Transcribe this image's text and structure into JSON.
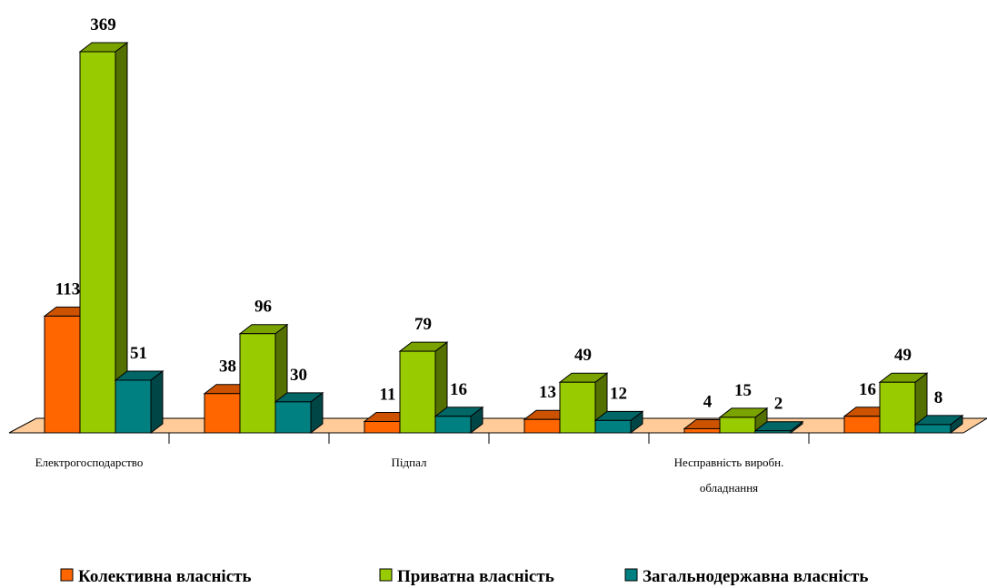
{
  "chart_data": {
    "type": "bar3d",
    "categories": [
      "Електрогосподарство",
      null,
      "Підпал",
      null,
      "Несправність виробн. обладнання",
      null
    ],
    "series": [
      {
        "name": "Колективна власність",
        "color": "#ff6600",
        "values": [
          113,
          38,
          11,
          13,
          4,
          16
        ]
      },
      {
        "name": "Приватна власність",
        "color": "#99cc00",
        "values": [
          369,
          96,
          79,
          49,
          15,
          49
        ]
      },
      {
        "name": "Загальнодержавна власність",
        "color": "#008080",
        "values": [
          51,
          30,
          16,
          12,
          2,
          8
        ]
      }
    ],
    "legend": "bottom"
  }
}
